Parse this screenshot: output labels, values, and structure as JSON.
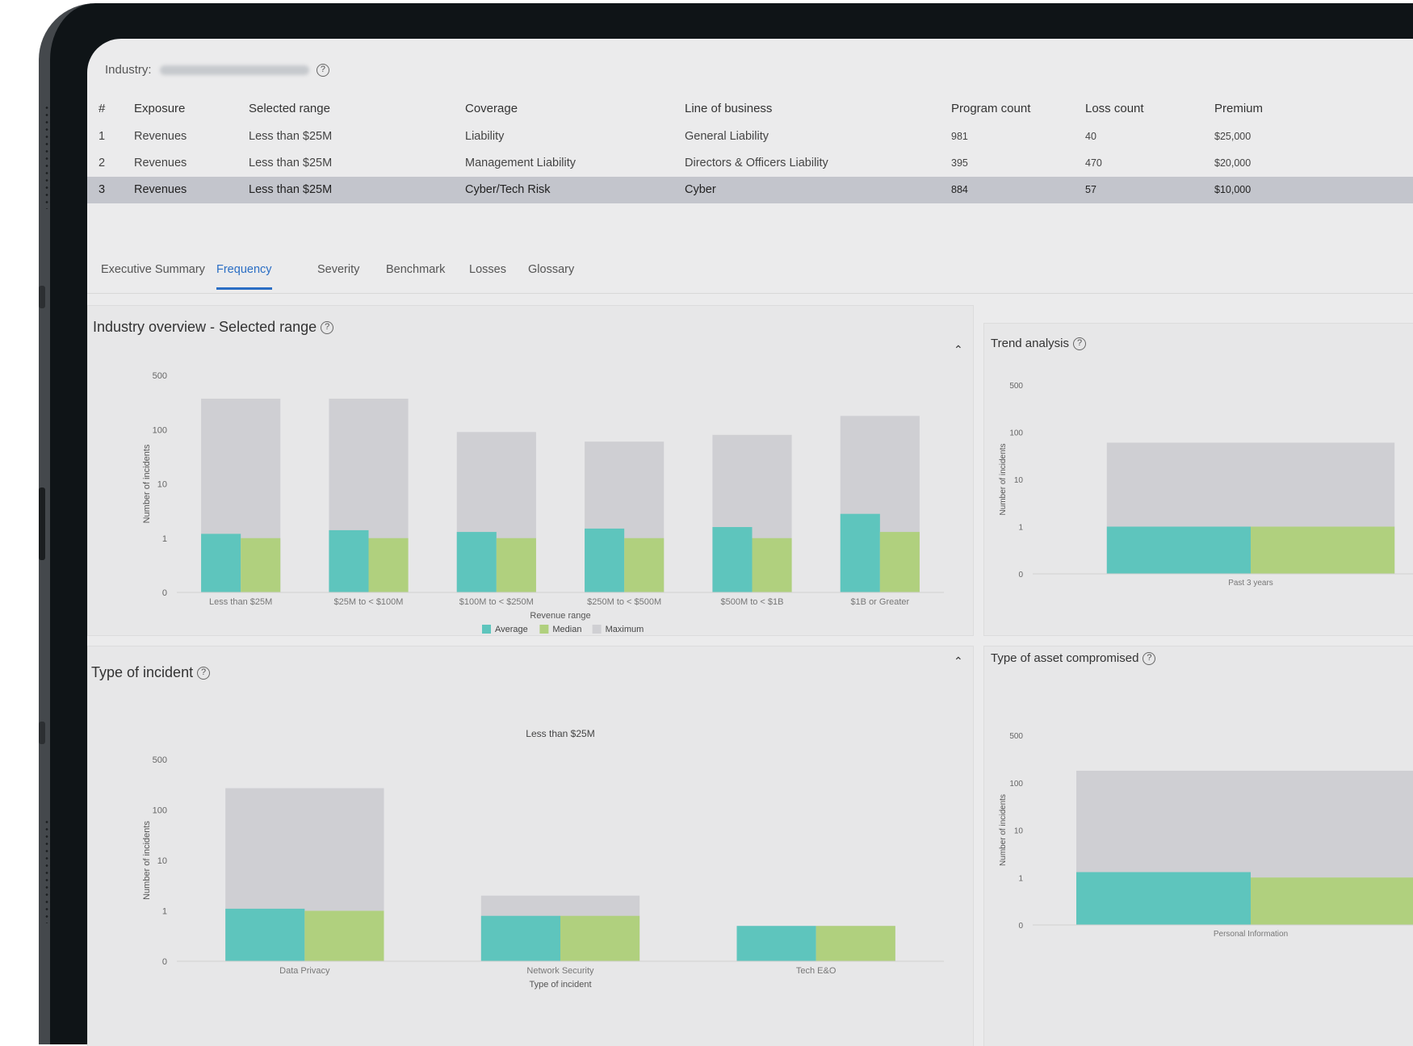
{
  "industry": {
    "label": "Industry:",
    "value": "52 Finance and Insurance"
  },
  "table": {
    "headers": [
      "#",
      "Exposure",
      "Selected range",
      "Coverage",
      "Line of business",
      "Program count",
      "Loss count",
      "Premium"
    ],
    "rows": [
      [
        "1",
        "Revenues",
        "Less than $25M",
        "Liability",
        "General Liability",
        "981",
        "40",
        "$25,000"
      ],
      [
        "2",
        "Revenues",
        "Less than $25M",
        "Management Liability",
        "Directors & Officers Liability",
        "395",
        "470",
        "$20,000"
      ],
      [
        "3",
        "Revenues",
        "Less than $25M",
        "Cyber/Tech Risk",
        "Cyber",
        "884",
        "57",
        "$10,000"
      ]
    ],
    "selected_row": 2
  },
  "tabs": [
    "Executive Summary",
    "Frequency",
    "Severity",
    "Benchmark",
    "Losses",
    "Glossary"
  ],
  "active_tab": 1,
  "colors": {
    "average": "#5ec5bd",
    "median": "#b0d07e",
    "maximum": "#cfcfd3",
    "accent": "#2b6ec4"
  },
  "industry_overview": {
    "title": "Industry overview - Selected range",
    "collapse_icon": "chevron-up-icon"
  },
  "trend_analysis": {
    "title": "Trend analysis"
  },
  "type_of_incident": {
    "title": "Type of incident",
    "collapse_icon": "chevron-up-icon"
  },
  "asset_compromised": {
    "title": "Type of asset compromised"
  },
  "chart_data": [
    {
      "id": "industry-overview",
      "type": "bar",
      "title": "Industry overview - Selected range",
      "xlabel": "Revenue range",
      "ylabel": "Number of incidents",
      "y_scale": "log",
      "y_ticks": [
        "0",
        "1",
        "10",
        "100",
        "500"
      ],
      "categories": [
        "Less than $25M",
        "$25M to < $100M",
        "$100M to < $250M",
        "$250M to < $500M",
        "$500M to < $1B",
        "$1B or Greater"
      ],
      "series": [
        {
          "name": "Average",
          "values": [
            1.2,
            1.4,
            1.3,
            1.5,
            1.6,
            2.8
          ]
        },
        {
          "name": "Median",
          "values": [
            1,
            1,
            1,
            1,
            1,
            1.3
          ]
        },
        {
          "name": "Maximum",
          "values": [
            250,
            250,
            90,
            60,
            80,
            150
          ]
        }
      ],
      "legend": [
        "Average",
        "Median",
        "Maximum"
      ],
      "legend_position": "bottom"
    },
    {
      "id": "trend-analysis",
      "type": "bar",
      "title": "Trend analysis",
      "ylabel": "Number of incidents",
      "y_scale": "log",
      "y_ticks": [
        "0",
        "1",
        "10",
        "100",
        "500"
      ],
      "categories": [
        "Past 3 years"
      ],
      "series": [
        {
          "name": "Average",
          "values": [
            1
          ]
        },
        {
          "name": "Median",
          "values": [
            1
          ]
        },
        {
          "name": "Maximum",
          "values": [
            60
          ]
        }
      ]
    },
    {
      "id": "type-of-incident",
      "type": "bar",
      "title": "Type of incident",
      "subtitle": "Less than $25M",
      "xlabel": "Type of incident",
      "ylabel": "Number of incidents",
      "y_scale": "log",
      "y_ticks": [
        "0",
        "1",
        "10",
        "100",
        "500"
      ],
      "categories": [
        "Data Privacy",
        "Network Security",
        "Tech E&O"
      ],
      "series": [
        {
          "name": "Average",
          "values": [
            1.1,
            0.9,
            0.7
          ]
        },
        {
          "name": "Median",
          "values": [
            1,
            0.9,
            0.7
          ]
        },
        {
          "name": "Maximum",
          "values": [
            200,
            2,
            0.7
          ]
        }
      ]
    },
    {
      "id": "type-of-asset-compromised",
      "type": "bar",
      "title": "Type of asset compromised",
      "ylabel": "Number of incidents",
      "y_scale": "log",
      "y_ticks": [
        "0",
        "1",
        "10",
        "100",
        "500"
      ],
      "categories": [
        "Personal Information"
      ],
      "series": [
        {
          "name": "Average",
          "values": [
            1.3
          ]
        },
        {
          "name": "Median",
          "values": [
            1
          ]
        },
        {
          "name": "Maximum",
          "values": [
            150
          ]
        }
      ]
    }
  ]
}
